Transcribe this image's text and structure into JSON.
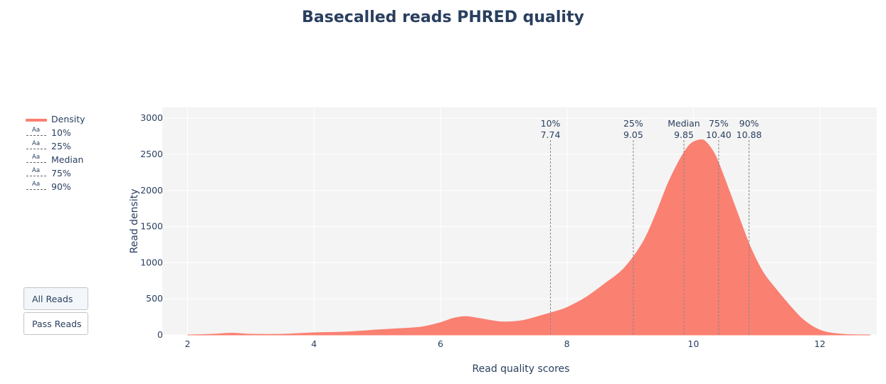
{
  "colors": {
    "density": "#fa8072",
    "plot_bg": "#f4f4f4",
    "grid": "#ffffff",
    "marker_line": "#888888",
    "text": "#2a3f5f"
  },
  "buttons": {
    "all_reads": "All Reads",
    "pass_reads": "Pass Reads",
    "active": "all_reads"
  },
  "legend": [
    {
      "label": "Density",
      "kind": "line"
    },
    {
      "label": "10%",
      "kind": "annotation",
      "symbol": "Aa"
    },
    {
      "label": "25%",
      "kind": "annotation",
      "symbol": "Aa"
    },
    {
      "label": "Median",
      "kind": "annotation",
      "symbol": "Aa"
    },
    {
      "label": "75%",
      "kind": "annotation",
      "symbol": "Aa"
    },
    {
      "label": "90%",
      "kind": "annotation",
      "symbol": "Aa"
    }
  ],
  "chart_data": {
    "type": "area",
    "title": "Basecalled reads PHRED quality",
    "xlabel": "Read quality scores",
    "ylabel": "Read density",
    "xlim": [
      1.6,
      12.9
    ],
    "ylim": [
      0,
      3150
    ],
    "xticks": [
      2,
      4,
      6,
      8,
      10,
      12
    ],
    "yticks": [
      0,
      500,
      1000,
      1500,
      2000,
      2500,
      3000
    ],
    "grid": true,
    "legend_position": "left",
    "series": [
      {
        "name": "Density",
        "x": [
          2.0,
          2.4,
          2.7,
          3.0,
          3.5,
          4.0,
          4.5,
          5.0,
          5.3,
          5.7,
          6.0,
          6.2,
          6.4,
          6.6,
          6.8,
          7.0,
          7.3,
          7.6,
          7.8,
          8.0,
          8.3,
          8.6,
          8.9,
          9.2,
          9.4,
          9.6,
          9.8,
          9.95,
          10.1,
          10.2,
          10.35,
          10.5,
          10.7,
          10.9,
          11.1,
          11.3,
          11.5,
          11.7,
          11.9,
          12.1,
          12.4,
          12.8
        ],
        "y": [
          0,
          10,
          25,
          10,
          10,
          30,
          40,
          70,
          85,
          110,
          170,
          230,
          255,
          230,
          200,
          180,
          200,
          270,
          320,
          380,
          520,
          710,
          920,
          1280,
          1660,
          2100,
          2450,
          2640,
          2700,
          2670,
          2480,
          2150,
          1680,
          1220,
          870,
          640,
          430,
          240,
          110,
          40,
          8,
          0
        ]
      }
    ],
    "annotations": [
      {
        "name": "10%",
        "x": 7.74,
        "label": "10%",
        "value": "7.74"
      },
      {
        "name": "25%",
        "x": 9.05,
        "label": "25%",
        "value": "9.05"
      },
      {
        "name": "Median",
        "x": 9.85,
        "label": "Median",
        "value": "9.85"
      },
      {
        "name": "75%",
        "x": 10.4,
        "label": "75%",
        "value": "10.40"
      },
      {
        "name": "90%",
        "x": 10.88,
        "label": "90%",
        "value": "10.88"
      }
    ]
  }
}
